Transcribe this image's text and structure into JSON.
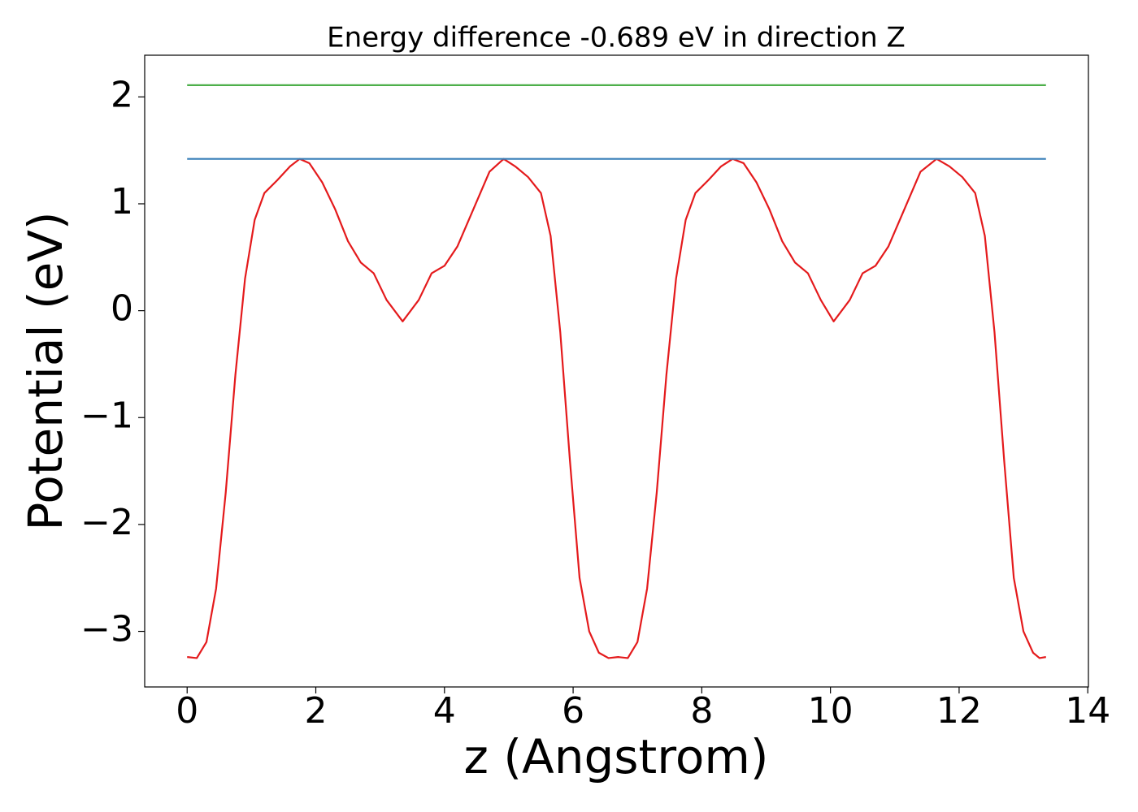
{
  "chart_data": {
    "type": "line",
    "title": "Energy difference -0.689 eV in direction Z",
    "x_label": "z (Angstrom)",
    "y_label": "Potential (eV)",
    "xlim": [
      -0.66,
      14.01
    ],
    "ylim": [
      -3.52,
      2.39
    ],
    "xticks": [
      0,
      2,
      4,
      6,
      8,
      10,
      12,
      14
    ],
    "yticks": [
      {
        "value": -3,
        "label": "−3"
      },
      {
        "value": -2,
        "label": "−2"
      },
      {
        "value": -1,
        "label": "−1"
      },
      0,
      1,
      2
    ],
    "series": [
      {
        "color": "#e41a1c",
        "x": [
          0,
          0.15,
          0.3,
          0.45,
          0.6,
          0.75,
          0.9,
          1.05,
          1.2,
          1.4,
          1.6,
          1.75,
          1.9,
          2.1,
          2.3,
          2.5,
          2.7,
          2.9,
          3.1,
          3.35,
          3.6,
          3.8,
          4.0,
          4.2,
          4.45,
          4.7,
          4.92,
          5.1,
          5.3,
          5.5,
          5.65,
          5.8,
          5.95,
          6.1,
          6.25,
          6.4,
          6.55,
          6.7,
          6.85,
          7.0,
          7.15,
          7.3,
          7.45,
          7.6,
          7.75,
          7.9,
          8.1,
          8.3,
          8.48,
          8.65,
          8.85,
          9.05,
          9.25,
          9.45,
          9.65,
          9.85,
          10.05,
          10.3,
          10.5,
          10.7,
          10.9,
          11.15,
          11.4,
          11.65,
          11.85,
          12.05,
          12.25,
          12.4,
          12.55,
          12.7,
          12.85,
          13.0,
          13.15,
          13.25,
          13.35
        ],
        "values": [
          -3.24,
          -3.25,
          -3.1,
          -2.6,
          -1.7,
          -0.6,
          0.3,
          0.85,
          1.1,
          1.22,
          1.35,
          1.42,
          1.38,
          1.2,
          0.95,
          0.65,
          0.45,
          0.35,
          0.1,
          -0.1,
          0.1,
          0.35,
          0.42,
          0.6,
          0.95,
          1.3,
          1.42,
          1.35,
          1.25,
          1.1,
          0.7,
          -0.2,
          -1.4,
          -2.5,
          -3.0,
          -3.2,
          -3.25,
          -3.24,
          -3.25,
          -3.1,
          -2.6,
          -1.7,
          -0.6,
          0.3,
          0.85,
          1.1,
          1.22,
          1.35,
          1.42,
          1.38,
          1.2,
          0.95,
          0.65,
          0.45,
          0.35,
          0.1,
          -0.1,
          0.1,
          0.35,
          0.42,
          0.6,
          0.95,
          1.3,
          1.42,
          1.35,
          1.25,
          1.1,
          0.7,
          -0.2,
          -1.4,
          -2.5,
          -3.0,
          -3.2,
          -3.25,
          -3.24
        ]
      },
      {
        "color": "#377eb8",
        "x": [
          0,
          13.35
        ],
        "values": [
          1.42,
          1.42
        ]
      },
      {
        "color": "#4daf4a",
        "x": [
          0,
          13.35
        ],
        "values": [
          2.11,
          2.11
        ]
      }
    ]
  }
}
